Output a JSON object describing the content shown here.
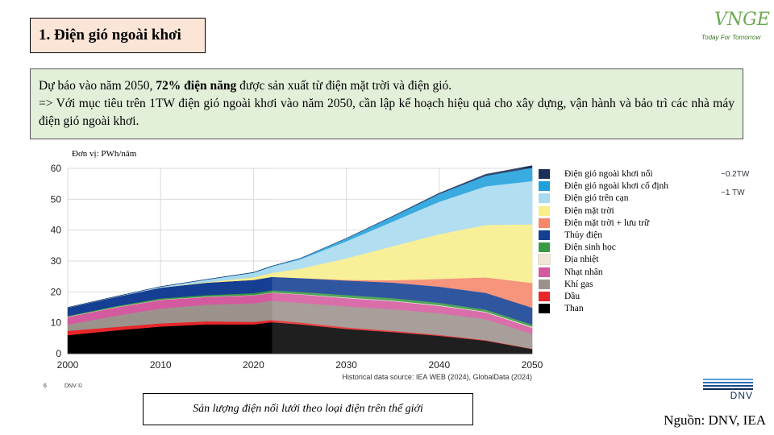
{
  "slide": {
    "title": "1. Điện gió ngoài khơi",
    "logo_text": "VNGE",
    "logo_tagline": "Today For Tomorrow",
    "info_pre": "Dự báo vào năm 2050, ",
    "info_bold": "72% điện năng",
    "info_post": " được sản xuất từ điện mặt trời và điện gió.",
    "info_line2": "=> Với mục tiêu trên 1TW điện gió ngoài khơi vào năm 2050, cần lập kế hoạch hiệu quả cho xây dựng, vận hành và bảo trì các nhà máy điện gió ngoài khơi.",
    "caption": "Sản lượng điện nối lưới theo loại điện trên thế giới",
    "source": "Nguồn: DNV, IEA",
    "page_number": "6",
    "footer_brand": "DNV ©",
    "dnv_logo_text": "DNV"
  },
  "chart_data": {
    "type": "area",
    "unit_label": "Đơn vị: PWh/năm",
    "historical_note": "Historical data source: IEA WEB (2024), GlobalData (2024)",
    "x": [
      2000,
      2005,
      2010,
      2015,
      2020,
      2022,
      2025,
      2030,
      2035,
      2040,
      2045,
      2050
    ],
    "xticks": [
      2000,
      2010,
      2020,
      2030,
      2040,
      2050
    ],
    "ylim": [
      0,
      60
    ],
    "yticks": [
      0,
      10,
      20,
      30,
      40,
      50,
      60
    ],
    "grid": true,
    "historical_end": 2022,
    "series": [
      {
        "name": "Than",
        "color": "#000000",
        "values": [
          6.0,
          7.5,
          8.8,
          9.5,
          9.5,
          10.2,
          9.5,
          8.0,
          7.0,
          5.8,
          4.2,
          1.5
        ]
      },
      {
        "name": "Dầu",
        "color": "#e8262a",
        "values": [
          1.4,
          1.1,
          1.0,
          1.0,
          0.8,
          0.7,
          0.6,
          0.5,
          0.4,
          0.3,
          0.2,
          0.1
        ]
      },
      {
        "name": "Khí gas",
        "color": "#9c928c",
        "values": [
          2.0,
          3.6,
          4.8,
          5.4,
          6.0,
          6.2,
          6.4,
          6.8,
          7.0,
          7.0,
          6.8,
          4.8
        ]
      },
      {
        "name": "Nhạt nhân",
        "color": "#d45aa0",
        "values": [
          2.5,
          2.7,
          2.8,
          2.5,
          2.6,
          2.6,
          2.7,
          2.7,
          2.6,
          2.4,
          2.2,
          2.0
        ]
      },
      {
        "name": "Địa nhiệt",
        "color": "#f0e6d8",
        "values": [
          0.1,
          0.1,
          0.1,
          0.1,
          0.1,
          0.1,
          0.1,
          0.2,
          0.2,
          0.2,
          0.2,
          0.3
        ]
      },
      {
        "name": "Điện sinh học",
        "color": "#3a9a43",
        "values": [
          0.2,
          0.3,
          0.4,
          0.5,
          0.6,
          0.7,
          0.7,
          0.8,
          0.8,
          0.8,
          0.7,
          0.7
        ]
      },
      {
        "name": "Thủy điện",
        "color": "#143f93",
        "values": [
          2.7,
          3.0,
          3.5,
          4.0,
          4.3,
          4.4,
          4.5,
          4.7,
          5.0,
          5.2,
          5.4,
          5.5
        ]
      },
      {
        "name": "Điện mặt trời + lưu trữ",
        "color": "#f5876a",
        "values": [
          0,
          0,
          0,
          0,
          0,
          0,
          0,
          0.2,
          0.8,
          2.5,
          5.0,
          8.0
        ]
      },
      {
        "name": "Điện mặt trời",
        "color": "#f8ee8a",
        "values": [
          0,
          0,
          0,
          0.2,
          0.8,
          1.3,
          3.0,
          7.0,
          11.0,
          14.5,
          17.0,
          19.0
        ]
      },
      {
        "name": "Điện gió trên cạn",
        "color": "#a8daf0",
        "values": [
          0.05,
          0.1,
          0.3,
          0.8,
          1.5,
          2.0,
          3.0,
          5.5,
          8.0,
          10.5,
          12.5,
          14.0
        ]
      },
      {
        "name": "Điện gió ngoài khơi cố định",
        "color": "#1fa0dc",
        "values": [
          0,
          0,
          0,
          0.05,
          0.1,
          0.15,
          0.3,
          0.9,
          1.6,
          2.5,
          3.4,
          4.3
        ]
      },
      {
        "name": "Điện gió ngoài khơi nổi",
        "color": "#1a2e5a",
        "values": [
          0,
          0,
          0,
          0,
          0,
          0,
          0,
          0.05,
          0.15,
          0.3,
          0.5,
          0.7
        ]
      }
    ],
    "legend_order": [
      "Điện gió ngoài khơi nổi",
      "Điện gió ngoài khơi cố định",
      "Điện gió trên cạn",
      "Điện mặt trời",
      "Điện mặt trời + lưu trữ",
      "Thủy điện",
      "Điện sinh học",
      "Địa nhiệt",
      "Nhạt nhân",
      "Khí gas",
      "Dầu",
      "Than"
    ],
    "annotations": [
      {
        "series": "Điện gió ngoài khơi nổi",
        "text": "~0.2TW"
      },
      {
        "series": "Điện gió ngoài khơi cố định",
        "text": "~1 TW"
      }
    ]
  }
}
